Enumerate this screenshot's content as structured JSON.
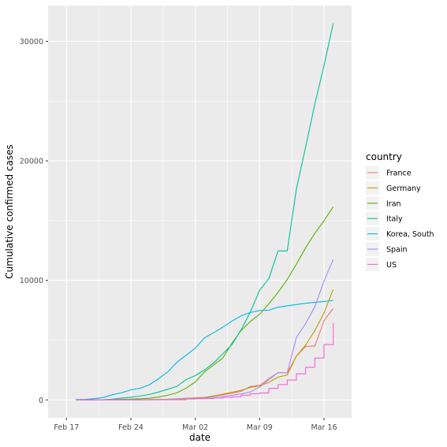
{
  "chart_data": {
    "type": "line",
    "xlabel": "date",
    "ylabel": "Cumulative confirmed cases",
    "x_range": [
      "2020-02-15",
      "2020-03-19"
    ],
    "ylim": [
      -1500,
      33000
    ],
    "x_ticks": [
      {
        "date": "2020-02-17",
        "label": "Feb 17"
      },
      {
        "date": "2020-02-24",
        "label": "Feb 24"
      },
      {
        "date": "2020-03-02",
        "label": "Mar 02"
      },
      {
        "date": "2020-03-09",
        "label": "Mar 09"
      },
      {
        "date": "2020-03-16",
        "label": "Mar 16"
      }
    ],
    "y_ticks": [
      {
        "value": 0,
        "label": "0"
      },
      {
        "value": 10000,
        "label": "10000"
      },
      {
        "value": 20000,
        "label": "20000"
      },
      {
        "value": 30000,
        "label": "30000"
      }
    ],
    "grid": true,
    "panel_background": "#ebebeb",
    "legend": {
      "title": "country",
      "position": "right"
    },
    "series": [
      {
        "name": "France",
        "color": "#F8766D",
        "step": false,
        "points": [
          [
            "2020-02-18",
            12
          ],
          [
            "2020-02-25",
            14
          ],
          [
            "2020-02-28",
            57
          ],
          [
            "2020-03-01",
            130
          ],
          [
            "2020-03-03",
            212
          ],
          [
            "2020-03-05",
            423
          ],
          [
            "2020-03-07",
            716
          ],
          [
            "2020-03-08",
            1126
          ],
          [
            "2020-03-09",
            1209
          ],
          [
            "2020-03-10",
            1784
          ],
          [
            "2020-03-11",
            2281
          ],
          [
            "2020-03-12",
            2281
          ],
          [
            "2020-03-13",
            3661
          ],
          [
            "2020-03-14",
            4469
          ],
          [
            "2020-03-15",
            4499
          ],
          [
            "2020-03-16",
            6633
          ],
          [
            "2020-03-17",
            7652
          ]
        ]
      },
      {
        "name": "Germany",
        "color": "#C49A00",
        "step": false,
        "points": [
          [
            "2020-02-18",
            16
          ],
          [
            "2020-02-25",
            17
          ],
          [
            "2020-02-28",
            48
          ],
          [
            "2020-03-01",
            130
          ],
          [
            "2020-03-03",
            196
          ],
          [
            "2020-03-05",
            482
          ],
          [
            "2020-03-07",
            799
          ],
          [
            "2020-03-08",
            1040
          ],
          [
            "2020-03-09",
            1176
          ],
          [
            "2020-03-10",
            1457
          ],
          [
            "2020-03-11",
            1908
          ],
          [
            "2020-03-12",
            2078
          ],
          [
            "2020-03-13",
            3675
          ],
          [
            "2020-03-14",
            4585
          ],
          [
            "2020-03-15",
            5795
          ],
          [
            "2020-03-16",
            7272
          ],
          [
            "2020-03-17",
            9257
          ]
        ]
      },
      {
        "name": "Iran",
        "color": "#53B400",
        "step": false,
        "points": [
          [
            "2020-02-19",
            2
          ],
          [
            "2020-02-21",
            18
          ],
          [
            "2020-02-22",
            28
          ],
          [
            "2020-02-23",
            43
          ],
          [
            "2020-02-24",
            61
          ],
          [
            "2020-02-25",
            95
          ],
          [
            "2020-02-26",
            139
          ],
          [
            "2020-02-27",
            245
          ],
          [
            "2020-02-28",
            388
          ],
          [
            "2020-02-29",
            593
          ],
          [
            "2020-03-01",
            978
          ],
          [
            "2020-03-02",
            1501
          ],
          [
            "2020-03-03",
            2336
          ],
          [
            "2020-03-04",
            2922
          ],
          [
            "2020-03-05",
            3513
          ],
          [
            "2020-03-06",
            4747
          ],
          [
            "2020-03-07",
            5823
          ],
          [
            "2020-03-08",
            6566
          ],
          [
            "2020-03-09",
            7161
          ],
          [
            "2020-03-10",
            8042
          ],
          [
            "2020-03-11",
            9000
          ],
          [
            "2020-03-12",
            10075
          ],
          [
            "2020-03-13",
            11364
          ],
          [
            "2020-03-14",
            12729
          ],
          [
            "2020-03-15",
            13938
          ],
          [
            "2020-03-16",
            14991
          ],
          [
            "2020-03-17",
            16169
          ]
        ]
      },
      {
        "name": "Italy",
        "color": "#00C094",
        "step": false,
        "points": [
          [
            "2020-02-18",
            3
          ],
          [
            "2020-02-21",
            20
          ],
          [
            "2020-02-22",
            62
          ],
          [
            "2020-02-23",
            155
          ],
          [
            "2020-02-24",
            229
          ],
          [
            "2020-02-25",
            322
          ],
          [
            "2020-02-26",
            453
          ],
          [
            "2020-02-27",
            655
          ],
          [
            "2020-02-28",
            888
          ],
          [
            "2020-02-29",
            1128
          ],
          [
            "2020-03-01",
            1694
          ],
          [
            "2020-03-02",
            2036
          ],
          [
            "2020-03-03",
            2502
          ],
          [
            "2020-03-04",
            3089
          ],
          [
            "2020-03-05",
            3858
          ],
          [
            "2020-03-06",
            4636
          ],
          [
            "2020-03-07",
            5883
          ],
          [
            "2020-03-08",
            7375
          ],
          [
            "2020-03-09",
            9172
          ],
          [
            "2020-03-10",
            10149
          ],
          [
            "2020-03-11",
            12462
          ],
          [
            "2020-03-12",
            12462
          ],
          [
            "2020-03-13",
            17660
          ],
          [
            "2020-03-14",
            21157
          ],
          [
            "2020-03-15",
            24747
          ],
          [
            "2020-03-16",
            27980
          ],
          [
            "2020-03-17",
            31506
          ]
        ]
      },
      {
        "name": "Korea, South",
        "color": "#00B6EB",
        "step": false,
        "points": [
          [
            "2020-02-18",
            31
          ],
          [
            "2020-02-19",
            51
          ],
          [
            "2020-02-20",
            104
          ],
          [
            "2020-02-21",
            204
          ],
          [
            "2020-02-22",
            433
          ],
          [
            "2020-02-23",
            602
          ],
          [
            "2020-02-24",
            833
          ],
          [
            "2020-02-25",
            977
          ],
          [
            "2020-02-26",
            1261
          ],
          [
            "2020-02-27",
            1766
          ],
          [
            "2020-02-28",
            2337
          ],
          [
            "2020-02-29",
            3150
          ],
          [
            "2020-03-01",
            3736
          ],
          [
            "2020-03-02",
            4335
          ],
          [
            "2020-03-03",
            5186
          ],
          [
            "2020-03-04",
            5621
          ],
          [
            "2020-03-05",
            6088
          ],
          [
            "2020-03-06",
            6593
          ],
          [
            "2020-03-07",
            7041
          ],
          [
            "2020-03-08",
            7314
          ],
          [
            "2020-03-09",
            7478
          ],
          [
            "2020-03-10",
            7513
          ],
          [
            "2020-03-11",
            7755
          ],
          [
            "2020-03-12",
            7869
          ],
          [
            "2020-03-13",
            7979
          ],
          [
            "2020-03-14",
            8086
          ],
          [
            "2020-03-15",
            8162
          ],
          [
            "2020-03-16",
            8236
          ],
          [
            "2020-03-17",
            8320
          ]
        ]
      },
      {
        "name": "Spain",
        "color": "#A58AFF",
        "step": false,
        "points": [
          [
            "2020-02-18",
            2
          ],
          [
            "2020-02-25",
            6
          ],
          [
            "2020-02-28",
            32
          ],
          [
            "2020-03-01",
            84
          ],
          [
            "2020-03-03",
            165
          ],
          [
            "2020-03-05",
            282
          ],
          [
            "2020-03-07",
            500
          ],
          [
            "2020-03-08",
            673
          ],
          [
            "2020-03-09",
            1073
          ],
          [
            "2020-03-10",
            1695
          ],
          [
            "2020-03-11",
            2277
          ],
          [
            "2020-03-12",
            2277
          ],
          [
            "2020-03-13",
            5232
          ],
          [
            "2020-03-14",
            6391
          ],
          [
            "2020-03-15",
            7798
          ],
          [
            "2020-03-16",
            9942
          ],
          [
            "2020-03-17",
            11748
          ]
        ]
      },
      {
        "name": "US",
        "color": "#FB61D7",
        "step": true,
        "points": [
          [
            "2020-02-18",
            13
          ],
          [
            "2020-02-28",
            15
          ],
          [
            "2020-03-01",
            74
          ],
          [
            "2020-03-02",
            98
          ],
          [
            "2020-03-03",
            118
          ],
          [
            "2020-03-04",
            149
          ],
          [
            "2020-03-05",
            217
          ],
          [
            "2020-03-06",
            262
          ],
          [
            "2020-03-07",
            402
          ],
          [
            "2020-03-08",
            518
          ],
          [
            "2020-03-09",
            583
          ],
          [
            "2020-03-10",
            959
          ],
          [
            "2020-03-11",
            1281
          ],
          [
            "2020-03-12",
            1663
          ],
          [
            "2020-03-13",
            2179
          ],
          [
            "2020-03-14",
            2727
          ],
          [
            "2020-03-15",
            3499
          ],
          [
            "2020-03-16",
            4632
          ],
          [
            "2020-03-17",
            6421
          ]
        ]
      }
    ]
  }
}
